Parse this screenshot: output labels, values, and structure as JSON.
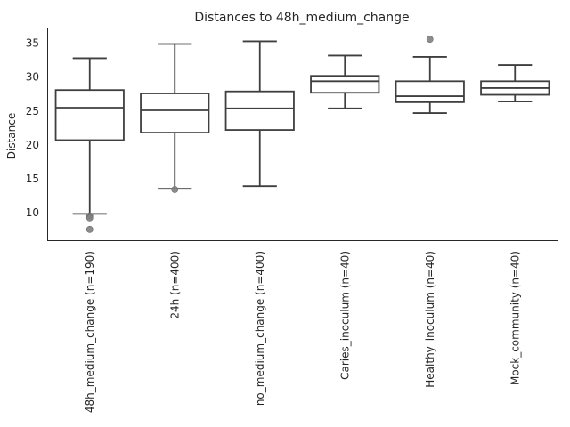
{
  "chart_data": {
    "type": "box",
    "title": "Distances to 48h_medium_change",
    "xlabel": "",
    "ylabel": "Distance",
    "ylim": [
      5.9,
      37.2
    ],
    "yticks": [
      10,
      15,
      20,
      25,
      30,
      35
    ],
    "grid": false,
    "categories": [
      "48h_medium_change (n=190)",
      "24h (n=400)",
      "no_medium_change (n=400)",
      "Caries_inoculum (n=40)",
      "Healthy_inoculum (n=40)",
      "Mock_community (n=40)"
    ],
    "boxes": [
      {
        "whisker_low": 9.8,
        "q1": 20.7,
        "median": 25.5,
        "q3": 28.1,
        "whisker_high": 32.8,
        "outliers": [
          9.5,
          9.2,
          7.5
        ]
      },
      {
        "whisker_low": 13.5,
        "q1": 21.8,
        "median": 25.1,
        "q3": 27.6,
        "whisker_high": 34.9,
        "outliers": [
          13.4
        ]
      },
      {
        "whisker_low": 13.9,
        "q1": 22.2,
        "median": 25.4,
        "q3": 27.9,
        "whisker_high": 35.3,
        "outliers": []
      },
      {
        "whisker_low": 25.4,
        "q1": 27.7,
        "median": 29.4,
        "q3": 30.2,
        "whisker_high": 33.2,
        "outliers": []
      },
      {
        "whisker_low": 24.7,
        "q1": 26.3,
        "median": 27.2,
        "q3": 29.4,
        "whisker_high": 33.0,
        "outliers": [
          35.6
        ]
      },
      {
        "whisker_low": 26.4,
        "q1": 27.4,
        "median": 28.4,
        "q3": 29.4,
        "whisker_high": 31.8,
        "outliers": []
      }
    ],
    "colors": {
      "line": "#3f3f3f",
      "outlier": "#808080",
      "axis": "#262626"
    }
  }
}
